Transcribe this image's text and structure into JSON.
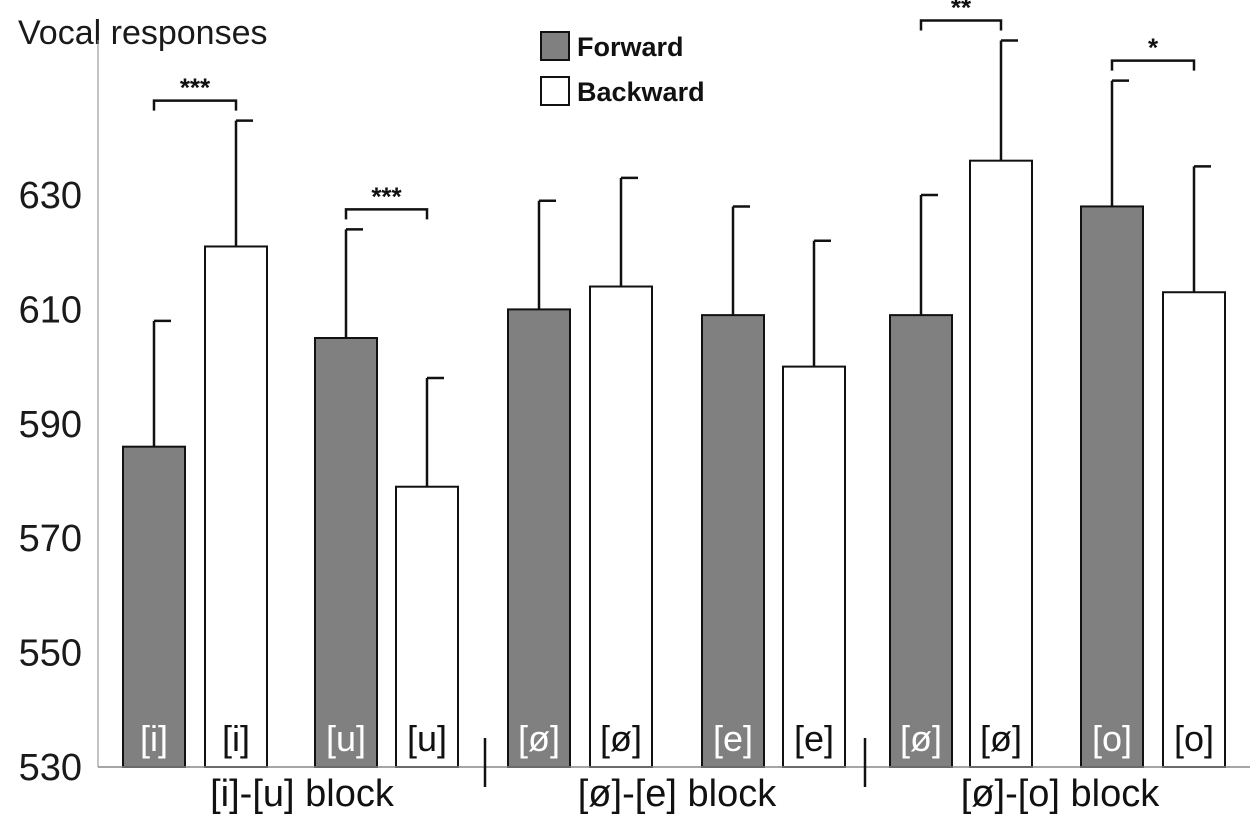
{
  "chart_data": {
    "type": "bar",
    "title": "Vocal responses",
    "ylim": [
      530,
      650
    ],
    "yticks": [
      "530",
      "550",
      "570",
      "590",
      "610",
      "630"
    ],
    "legend": {
      "position": "top-center",
      "items": [
        {
          "label": "Forward",
          "color": "#808080",
          "filled": true
        },
        {
          "label": "Backward",
          "color": "#ffffff",
          "filled": false
        }
      ]
    },
    "bars": [
      {
        "block": 0,
        "series": "Forward",
        "label": "[i]",
        "value": 586,
        "error": 22
      },
      {
        "block": 0,
        "series": "Backward",
        "label": "[i]",
        "value": 621,
        "error": 22
      },
      {
        "block": 0,
        "series": "Forward",
        "label": "[u]",
        "value": 605,
        "error": 19
      },
      {
        "block": 0,
        "series": "Backward",
        "label": "[u]",
        "value": 579,
        "error": 19
      },
      {
        "block": 1,
        "series": "Forward",
        "label": "[ø]",
        "value": 610,
        "error": 19
      },
      {
        "block": 1,
        "series": "Backward",
        "label": "[ø]",
        "value": 614,
        "error": 19
      },
      {
        "block": 1,
        "series": "Forward",
        "label": "[e]",
        "value": 609,
        "error": 19
      },
      {
        "block": 1,
        "series": "Backward",
        "label": "[e]",
        "value": 600,
        "error": 22
      },
      {
        "block": 2,
        "series": "Forward",
        "label": "[ø]",
        "value": 609,
        "error": 21
      },
      {
        "block": 2,
        "series": "Backward",
        "label": "[ø]",
        "value": 636,
        "error": 21
      },
      {
        "block": 2,
        "series": "Forward",
        "label": "[o]",
        "value": 628,
        "error": 22
      },
      {
        "block": 2,
        "series": "Backward",
        "label": "[o]",
        "value": 613,
        "error": 22
      }
    ],
    "blocks": [
      "[i]-[u] block",
      "[ø]-[e] block",
      "[ø]-[o] block"
    ],
    "significance": [
      {
        "bars": [
          0,
          1
        ],
        "text": "***"
      },
      {
        "bars": [
          2,
          3
        ],
        "text": "***"
      },
      {
        "bars": [
          8,
          9
        ],
        "text": "**"
      },
      {
        "bars": [
          10,
          11
        ],
        "text": "*"
      }
    ],
    "grid": false
  }
}
